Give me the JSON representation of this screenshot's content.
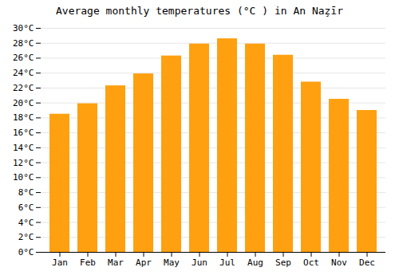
{
  "chart_data": {
    "type": "bar",
    "title": "Average monthly temperatures (°C ) in An Naz̧īr",
    "categories": [
      "Jan",
      "Feb",
      "Mar",
      "Apr",
      "May",
      "Jun",
      "Jul",
      "Aug",
      "Sep",
      "Oct",
      "Nov",
      "Dec"
    ],
    "values": [
      18.5,
      19.9,
      22.3,
      23.9,
      26.3,
      27.9,
      28.6,
      27.9,
      26.4,
      22.8,
      20.5,
      19.0
    ],
    "color": "#FFA010",
    "ylim": [
      0,
      30
    ],
    "yticks": [
      {
        "value": 0,
        "label": "0°C"
      },
      {
        "value": 2,
        "label": "2°C"
      },
      {
        "value": 4,
        "label": "4°C"
      },
      {
        "value": 6,
        "label": "6°C"
      },
      {
        "value": 8,
        "label": "8°C"
      },
      {
        "value": 10,
        "label": "10°C"
      },
      {
        "value": 12,
        "label": "12°C"
      },
      {
        "value": 14,
        "label": "14°C"
      },
      {
        "value": 16,
        "label": "16°C"
      },
      {
        "value": 18,
        "label": "18°C"
      },
      {
        "value": 20,
        "label": "20°C"
      },
      {
        "value": 22,
        "label": "22°C"
      },
      {
        "value": 24,
        "label": "24°C"
      },
      {
        "value": 26,
        "label": "26°C"
      },
      {
        "value": 28,
        "label": "28°C"
      },
      {
        "value": 30,
        "label": "30°C"
      }
    ],
    "grid": true
  }
}
